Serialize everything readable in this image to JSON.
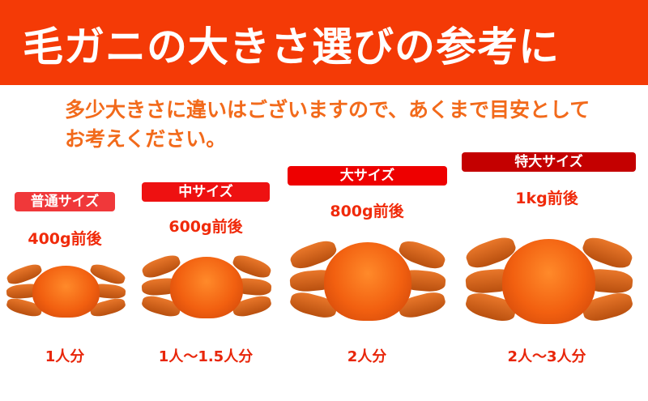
{
  "header": {
    "title": "毛ガニの大きさ選びの参考に"
  },
  "subtitle": {
    "line1": "多少大きさに違いはございますので、あくまで目安として",
    "line2": "お考えください。"
  },
  "sizes": [
    {
      "label": "普通サイズ",
      "weight": "400g前後",
      "servings": "1人分",
      "color": "#f0383a"
    },
    {
      "label": "中サイズ",
      "weight": "600g前後",
      "servings": "1人〜1.5人分",
      "color": "#ee1111"
    },
    {
      "label": "大サイズ",
      "weight": "800g前後",
      "servings": "2人分",
      "color": "#ee0000"
    },
    {
      "label": "特大サイズ",
      "weight": "1kg前後",
      "servings": "2人〜3人分",
      "color": "#c40000"
    }
  ],
  "colors": {
    "header": "#f43a06",
    "text": "#f26a1b"
  }
}
